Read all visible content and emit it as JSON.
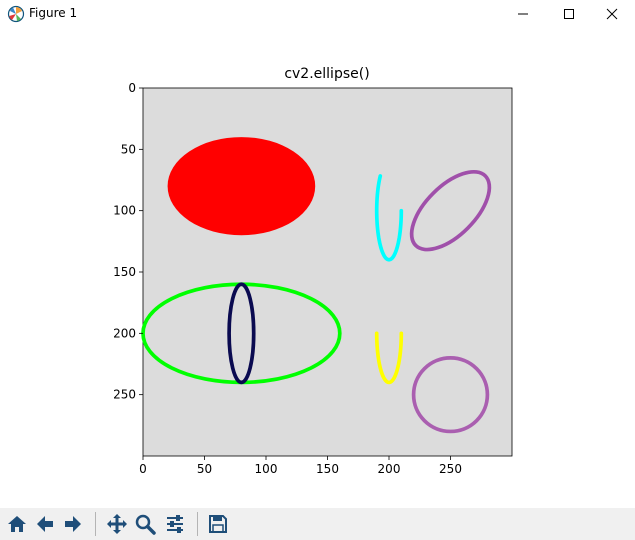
{
  "window": {
    "title": "Figure 1",
    "icons": {
      "app": "matplotlib-icon",
      "minimize": "minimize-icon",
      "maximize": "maximize-icon",
      "close": "close-icon"
    }
  },
  "chart_data": {
    "type": "image",
    "title": "cv2.ellipse()",
    "xlabel": "",
    "ylabel": "",
    "xlim": [
      0,
      300
    ],
    "ylim": [
      300,
      0
    ],
    "x_ticks": [
      0,
      50,
      100,
      150,
      200,
      250
    ],
    "y_ticks": [
      0,
      50,
      100,
      150,
      200,
      250
    ],
    "background_color": "#dcdcdc",
    "ellipses": [
      {
        "center": [
          80,
          80
        ],
        "axes": [
          60,
          40
        ],
        "angle": 0,
        "start_angle": 0,
        "end_angle": 360,
        "color": "#ff0000",
        "thickness": -1
      },
      {
        "center": [
          80,
          200
        ],
        "axes": [
          80,
          40
        ],
        "angle": 0,
        "start_angle": 0,
        "end_angle": 360,
        "color": "#00ff00",
        "thickness": 3
      },
      {
        "center": [
          80,
          200
        ],
        "axes": [
          10,
          40
        ],
        "angle": 0,
        "start_angle": 0,
        "end_angle": 360,
        "color": "#0a0a50",
        "thickness": 3
      },
      {
        "center": [
          200,
          100
        ],
        "axes": [
          10,
          40
        ],
        "angle": 0,
        "start_angle": 0,
        "end_angle": 225,
        "color": "#00ffff",
        "thickness": 3
      },
      {
        "center": [
          200,
          200
        ],
        "axes": [
          10,
          40
        ],
        "angle": 0,
        "start_angle": 0,
        "end_angle": 180,
        "color": "#ffff00",
        "thickness": 3
      },
      {
        "center": [
          250,
          100
        ],
        "axes": [
          40,
          20
        ],
        "angle": -45,
        "start_angle": 0,
        "end_angle": 360,
        "color": "#a050aa",
        "thickness": 3
      },
      {
        "center": [
          250,
          250
        ],
        "axes": [
          30,
          30
        ],
        "angle": 0,
        "start_angle": 0,
        "end_angle": 360,
        "color": "#aa5fb0",
        "thickness": 3
      }
    ]
  },
  "toolbar": {
    "buttons": [
      {
        "name": "home-button",
        "icon": "home-icon"
      },
      {
        "name": "back-button",
        "icon": "arrow-left-icon"
      },
      {
        "name": "forward-button",
        "icon": "arrow-right-icon"
      },
      {
        "name": "pan-button",
        "icon": "move-icon"
      },
      {
        "name": "zoom-button",
        "icon": "magnifier-icon"
      },
      {
        "name": "configure-subplots-button",
        "icon": "sliders-icon"
      },
      {
        "name": "save-button",
        "icon": "floppy-disk-icon"
      }
    ],
    "coord_readout": ""
  }
}
